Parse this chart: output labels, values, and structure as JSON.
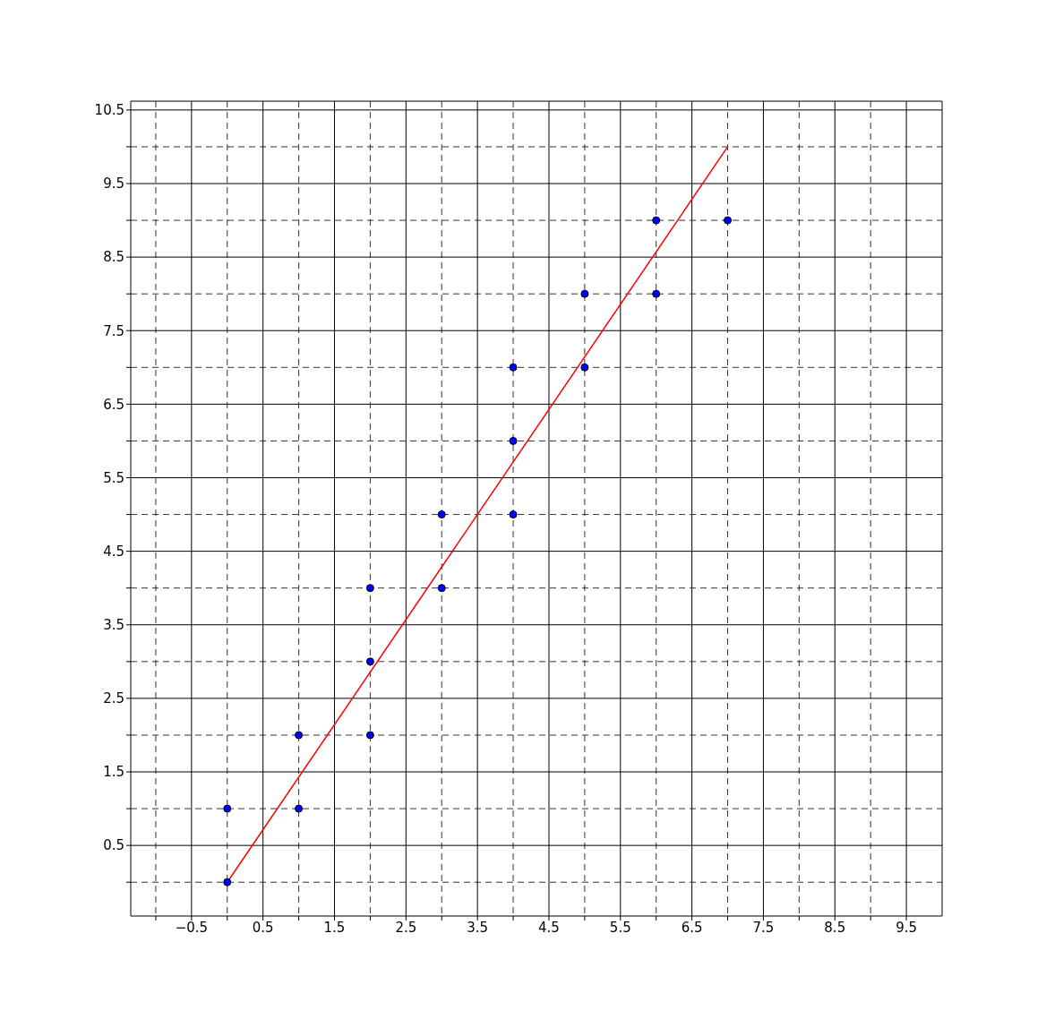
{
  "chart_data": {
    "type": "scatter",
    "series": [
      {
        "color": "#0000ff",
        "marker": "circle",
        "x": [
          0,
          0,
          1,
          1,
          2,
          2,
          2,
          3,
          3,
          4,
          4,
          4,
          5,
          5,
          6,
          6,
          7
        ],
        "values": [
          0,
          1,
          1,
          2,
          2,
          3,
          4,
          4,
          5,
          5,
          6,
          7,
          7,
          8,
          8,
          9,
          9
        ]
      },
      {
        "type": "line",
        "color": "#ff0000",
        "marker": "none",
        "x": [
          0,
          7
        ],
        "values": [
          0,
          10
        ]
      }
    ],
    "xlim": [
      -1.35,
      10
    ],
    "ylim": [
      -0.46,
      10.62
    ],
    "xticks": [
      {
        "value": -1,
        "label": null
      },
      {
        "value": -0.5,
        "label": "−0.5"
      },
      {
        "value": 0,
        "label": null
      },
      0.5,
      {
        "value": 1,
        "label": null
      },
      1.5,
      {
        "value": 2,
        "label": null
      },
      2.5,
      {
        "value": 3,
        "label": null
      },
      3.5,
      {
        "value": 4,
        "label": null
      },
      4.5,
      {
        "value": 5,
        "label": null
      },
      5.5,
      {
        "value": 6,
        "label": null
      },
      6.5,
      {
        "value": 7,
        "label": null
      },
      7.5,
      {
        "value": 8,
        "label": null
      },
      8.5,
      {
        "value": 9,
        "label": null
      },
      9.5
    ],
    "yticks": [
      {
        "value": 0,
        "label": null
      },
      0.5,
      {
        "value": 1,
        "label": null
      },
      1.5,
      {
        "value": 2,
        "label": null
      },
      2.5,
      {
        "value": 3,
        "label": null
      },
      3.5,
      {
        "value": 4,
        "label": null
      },
      4.5,
      {
        "value": 5,
        "label": null
      },
      5.5,
      {
        "value": 6,
        "label": null
      },
      6.5,
      {
        "value": 7,
        "label": null
      },
      7.5,
      {
        "value": 8,
        "label": null
      },
      8.5,
      {
        "value": 9,
        "label": null
      },
      9.5,
      {
        "value": 10,
        "label": null
      },
      10.5
    ],
    "grid": true
  }
}
